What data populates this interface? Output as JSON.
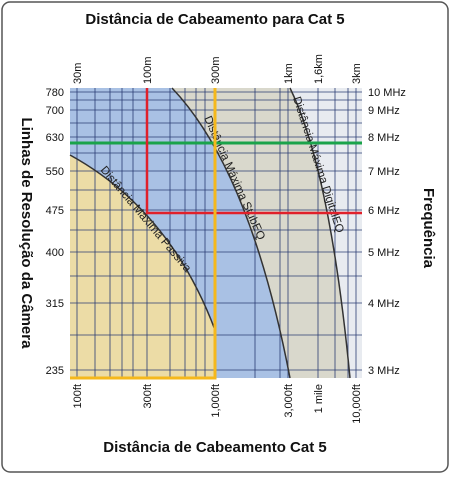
{
  "header": {
    "title": "Distância de Cabeamento para Cat 5"
  },
  "footer": {
    "title": "Distância de Cabeamento Cat 5"
  },
  "left_axis": {
    "title": "Linhas de Resolução da Câmera",
    "ticks": [
      "780",
      "700",
      "630",
      "550",
      "475",
      "400",
      "315",
      "235"
    ]
  },
  "right_axis": {
    "title": "Frequência",
    "ticks": [
      "10 MHz",
      "9 MHz",
      "8 MHz",
      "7 MHz",
      "6 MHz",
      "5 MHz",
      "4 MHz",
      "3 MHz"
    ]
  },
  "top_axis": {
    "ticks": [
      "30m",
      "100m",
      "300m",
      "1km",
      "1,6km",
      "3km"
    ]
  },
  "bottom_axis": {
    "ticks": [
      "100ft",
      "300ft",
      "1,000ft",
      "3,000ft",
      "1 mile",
      "10,000ft"
    ]
  },
  "curves": {
    "labels": [
      "Distância Máxima Passiva",
      "Distância Máxima StubEQ",
      "Distância Máxima DigitalEQ"
    ]
  }
}
